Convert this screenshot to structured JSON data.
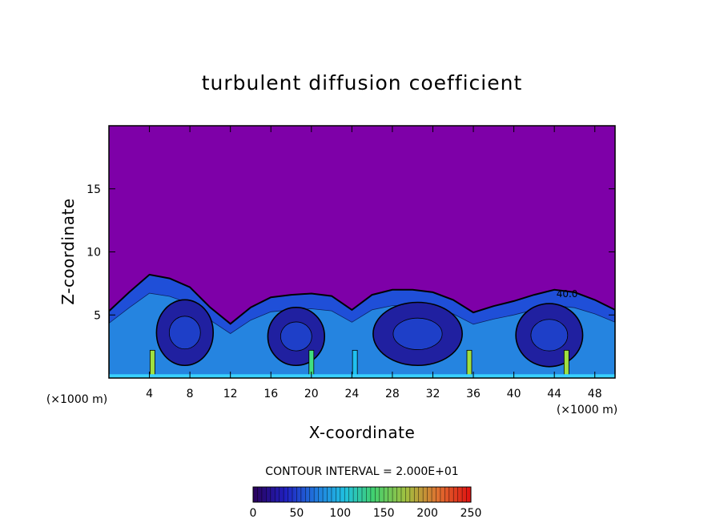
{
  "chart_data": {
    "type": "heatmap",
    "title": "turbulent diffusion coefficient",
    "xlabel": "X-coordinate",
    "ylabel": "Z-coordinate",
    "x_unit_label": "(×1000 m)",
    "z_unit_label": "(×1000 m)",
    "xlim": [
      0,
      50
    ],
    "ylim": [
      0,
      20
    ],
    "x_ticks": [
      4,
      8,
      12,
      16,
      20,
      24,
      28,
      32,
      36,
      40,
      44,
      48
    ],
    "y_ticks": [
      5,
      10,
      15
    ],
    "contour_interval_label": "CONTOUR INTERVAL = 2.000E+01",
    "contour_label_value": "40.0",
    "colorbar": {
      "ticks": [
        0,
        50,
        100,
        150,
        200,
        250
      ],
      "min": 0,
      "max": 250
    },
    "background_color": "#7e00a8",
    "boundary_layer": {
      "top_profile": [
        [
          0,
          5.3
        ],
        [
          2,
          6.8
        ],
        [
          4,
          8.2
        ],
        [
          6,
          7.9
        ],
        [
          8,
          7.2
        ],
        [
          10,
          5.6
        ],
        [
          12,
          4.3
        ],
        [
          14,
          5.6
        ],
        [
          16,
          6.4
        ],
        [
          18,
          6.6
        ],
        [
          20,
          6.7
        ],
        [
          22,
          6.5
        ],
        [
          24,
          5.4
        ],
        [
          26,
          6.6
        ],
        [
          28,
          7.0
        ],
        [
          30,
          7.0
        ],
        [
          32,
          6.8
        ],
        [
          34,
          6.2
        ],
        [
          36,
          5.2
        ],
        [
          38,
          5.7
        ],
        [
          40,
          6.1
        ],
        [
          42,
          6.6
        ],
        [
          44,
          7.0
        ],
        [
          46,
          6.8
        ],
        [
          48,
          6.2
        ],
        [
          50,
          5.4
        ]
      ],
      "eddies": [
        {
          "x": 7.5,
          "z": 3.6,
          "rx": 2.8,
          "rz": 2.6,
          "level": 20
        },
        {
          "x": 30.5,
          "z": 3.5,
          "rx": 4.4,
          "rz": 2.5,
          "level": 20
        },
        {
          "x": 43.5,
          "z": 3.4,
          "rx": 3.3,
          "rz": 2.5,
          "level": 20
        },
        {
          "x": 18.5,
          "z": 3.3,
          "rx": 2.8,
          "rz": 2.3,
          "level": 40
        }
      ],
      "plumes": [
        {
          "x": 4.3,
          "level": 150
        },
        {
          "x": 20.0,
          "level": 110
        },
        {
          "x": 24.3,
          "level": 90
        },
        {
          "x": 45.2,
          "level": 150
        },
        {
          "x": 35.6,
          "level": 170
        }
      ]
    },
    "palette": [
      "#1a0050",
      "#2020a0",
      "#2060e0",
      "#20c0f0",
      "#40e080",
      "#a0e040",
      "#e0c020",
      "#f06010",
      "#ff0000"
    ]
  }
}
